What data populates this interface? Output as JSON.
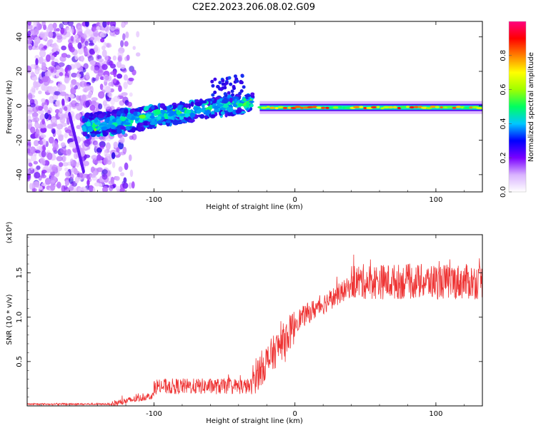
{
  "figure_title": "C2E2.2023.206.08.02.G09",
  "chart_data": [
    {
      "id": "spectrogram",
      "type": "heatmap",
      "xlabel": "Height of straight line (km)",
      "ylabel": "Frequency (Hz)",
      "xlim": [
        -190,
        133
      ],
      "ylim": [
        -50,
        49
      ],
      "xticks": [
        -100,
        0,
        100
      ],
      "yticks": [
        -40,
        -20,
        0,
        20,
        40
      ],
      "colorbar": {
        "label": "Normalized spectral amplitude",
        "range": [
          0.0,
          1.0
        ],
        "ticks": [
          "0.0",
          "0.2",
          "0.4",
          "0.6",
          "0.8"
        ],
        "tick_values": [
          0.0,
          0.2,
          0.4,
          0.6,
          0.8
        ],
        "colors": [
          "#ffffff",
          "#d9b3ff",
          "#7a00ff",
          "#0000ff",
          "#00c8ff",
          "#00ff60",
          "#a0ff00",
          "#ffff00",
          "#ff8000",
          "#ff0000",
          "#ff0080"
        ]
      },
      "features": {
        "scatter_noise_x_range": [
          -190,
          -110
        ],
        "streak": {
          "x": [
            -160,
            -150
          ],
          "y": [
            -5,
            -38
          ]
        },
        "trend": {
          "x": [
            -150,
            -30
          ],
          "y_from": -12,
          "y_to": 2
        },
        "stable_band": {
          "x": [
            -25,
            133
          ],
          "y": -1
        }
      }
    },
    {
      "id": "snr",
      "type": "line",
      "xlabel": "Height of straight line (km)",
      "ylabel": "SNR (10 * v/v)",
      "y_scale_label": "(x10⁴)",
      "xlim": [
        -190,
        133
      ],
      "ylim": [
        0,
        1.93
      ],
      "xticks": [
        -100,
        0,
        100
      ],
      "yticks": [
        0.5,
        1.0,
        1.5
      ],
      "ytick_labels": [
        "0.5",
        "1.0",
        "1.5"
      ],
      "series": [
        {
          "name": "SNR",
          "color": "#ee3333",
          "segments": [
            {
              "x": [
                -190,
                -130
              ],
              "base": 0.02,
              "noise": 0.01
            },
            {
              "x": [
                -130,
                -100
              ],
              "base_from": 0.02,
              "base_to": 0.12,
              "noise": 0.04
            },
            {
              "x": [
                -100,
                -30
              ],
              "base": 0.22,
              "noise": 0.09
            },
            {
              "x": [
                -30,
                0
              ],
              "base_from": 0.3,
              "base_to": 0.9,
              "noise": 0.2
            },
            {
              "x": [
                0,
                40
              ],
              "base_from": 0.95,
              "base_to": 1.35,
              "noise": 0.12
            },
            {
              "x": [
                40,
                133
              ],
              "base": 1.4,
              "noise": 0.2
            }
          ]
        }
      ]
    }
  ]
}
